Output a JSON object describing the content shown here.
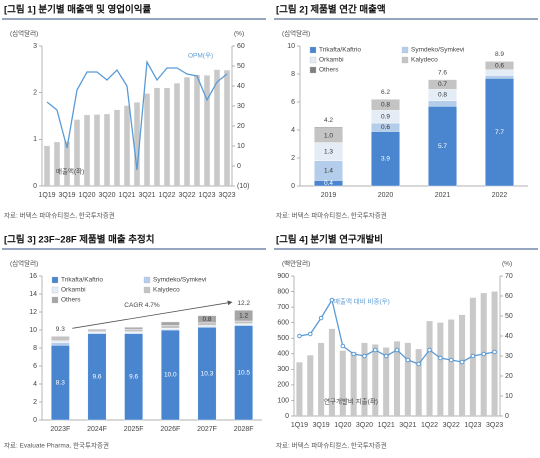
{
  "chart_data": [
    {
      "type": "bar_line",
      "title": "[그림 1] 분기별 매출액 및 영업이익률",
      "source": "자료: 버텍스 파마슈티컬스, 한국투자증권",
      "y_label": "(십억달러)",
      "y2_label": "(%)",
      "categories": [
        "1Q19",
        null,
        "3Q19",
        null,
        "1Q20",
        null,
        "3Q20",
        null,
        "1Q21",
        null,
        "3Q21",
        null,
        "1Q22",
        null,
        "3Q22",
        null,
        "1Q23",
        null,
        "3Q23"
      ],
      "series": [
        {
          "name": "매출액(좌)",
          "color": "#c9c9c9",
          "values": [
            0.86,
            0.94,
            0.95,
            1.42,
            1.52,
            1.53,
            1.54,
            1.63,
            1.72,
            1.79,
            1.98,
            2.1,
            2.1,
            2.2,
            2.33,
            2.38,
            2.37,
            2.49,
            2.48
          ]
        },
        {
          "name": "OPM(우)",
          "color": "#5b9bd5",
          "axis": "y2",
          "values": [
            32,
            28,
            9,
            38,
            47,
            47,
            43,
            48,
            40,
            -2,
            52,
            43,
            49,
            49,
            46,
            45,
            33,
            42,
            46
          ]
        }
      ],
      "ylim": [
        0,
        3
      ],
      "yticks": [
        0,
        1,
        2,
        3
      ],
      "y2lim": [
        -10,
        60
      ],
      "y2ticks": [
        {
          "value": -10,
          "label": "(10)"
        },
        0,
        10,
        20,
        30,
        40,
        50,
        60
      ],
      "markers": false
    },
    {
      "type": "stacked_bar",
      "title": "[그림 2] 제품별 연간 매출액",
      "source": "자료: 버텍스 파마슈티컬스, 한국투자증권",
      "y_label": "(십억달러)",
      "categories": [
        "2019",
        "2020",
        "2021",
        "2022"
      ],
      "series": [
        {
          "name": "Trikafta/Kaftrio",
          "color": "#4a86d0",
          "values": [
            0.4,
            3.9,
            5.7,
            7.7
          ],
          "value_labels": [
            "0.4",
            "3.9",
            "5.7",
            "7.7"
          ]
        },
        {
          "name": "Symdeko/Symkevi",
          "color": "#b4cdea",
          "values": [
            1.4,
            0.6,
            0.4,
            0.2
          ],
          "value_labels": [
            "1.4",
            "0.6",
            null,
            null
          ]
        },
        {
          "name": "Orkambi",
          "color": "#e4ecf6",
          "values": [
            1.3,
            0.9,
            0.8,
            0.4
          ],
          "value_labels": [
            "1.3",
            "0.9",
            "0.8",
            null
          ]
        },
        {
          "name": "Kalydeco",
          "color": "#c4c4c4",
          "values": [
            1.0,
            0.8,
            0.7,
            0.6
          ],
          "value_labels": [
            "1.0",
            "0.8",
            "0.7",
            "0.6"
          ]
        },
        {
          "name": "Others",
          "color": "#7f7f7f",
          "values": [
            0.1,
            0,
            0,
            0
          ],
          "value_labels": [
            null,
            null,
            null,
            null
          ]
        }
      ],
      "totals": [
        4.2,
        6.2,
        7.6,
        8.9
      ],
      "ylim": [
        0,
        10
      ],
      "yticks": [
        0,
        2,
        4,
        6,
        8,
        10
      ],
      "legend": true
    },
    {
      "type": "stacked_bar",
      "title": "[그림 3] 23F~28F 제품별 매출 추정치",
      "source": "자료: Evaluate Pharma, 한국투자증권",
      "y_label": "(십억달러)",
      "annotation": "CAGR 4.7%",
      "categories": [
        "2023F",
        "2024F",
        "2025F",
        "2026F",
        "2027F",
        "2028F"
      ],
      "series": [
        {
          "name": "Trikafta/Kaftrio",
          "color": "#4a86d0",
          "values": [
            8.3,
            9.6,
            9.6,
            10.0,
            10.3,
            10.5
          ],
          "value_labels": [
            "8.3",
            "9.6",
            "9.6",
            "10.0",
            "10.3",
            "10.5"
          ]
        },
        {
          "name": "Symdeko/Symkevi",
          "color": "#b4cdea",
          "values": [
            0.3,
            0.1,
            0.1,
            0.1,
            0.1,
            0.1
          ],
          "value_labels": [
            null,
            null,
            null,
            null,
            null,
            null
          ]
        },
        {
          "name": "Orkambi",
          "color": "#e4ecf6",
          "values": [
            0.2,
            0.1,
            0.1,
            0.1,
            0.1,
            0.1
          ],
          "value_labels": [
            null,
            null,
            null,
            null,
            null,
            null
          ]
        },
        {
          "name": "Kalydeco",
          "color": "#c4c4c4",
          "values": [
            0.5,
            0.3,
            0.3,
            0.3,
            0.3,
            0.3
          ],
          "value_labels": [
            null,
            null,
            null,
            null,
            null,
            null
          ]
        },
        {
          "name": "Others",
          "color": "#a6a6a6",
          "values": [
            0,
            0,
            0.2,
            0.4,
            0.8,
            1.2
          ],
          "value_labels": [
            null,
            null,
            null,
            null,
            "0.8",
            "1.2"
          ]
        }
      ],
      "totals": [
        9.3,
        null,
        null,
        null,
        null,
        12.2
      ],
      "ylim": [
        0,
        16
      ],
      "yticks": [
        0,
        2,
        4,
        6,
        8,
        10,
        12,
        14,
        16
      ],
      "legend": true
    },
    {
      "type": "bar_line",
      "title": "[그림 4] 분기별 연구개발비",
      "source": "자료: 버텍스 파마슈티컬스, 한국투자증권",
      "y_label": "(백만달러)",
      "y2_label": "(%)",
      "categories": [
        "1Q19",
        null,
        "3Q19",
        null,
        "1Q20",
        null,
        "3Q20",
        null,
        "1Q21",
        null,
        "3Q21",
        null,
        "1Q22",
        null,
        "3Q22",
        null,
        "1Q23",
        null,
        "3Q23"
      ],
      "series": [
        {
          "name": "연구개발비 지출(좌)",
          "color": "#c9c9c9",
          "values": [
            345,
            390,
            470,
            560,
            420,
            410,
            470,
            460,
            440,
            480,
            470,
            430,
            610,
            600,
            620,
            650,
            760,
            790,
            800
          ]
        },
        {
          "name": "매출액 대비 비중(우)",
          "color": "#5b9bd5",
          "axis": "y2",
          "values": [
            40,
            41,
            49,
            58,
            35,
            31,
            30,
            33,
            30,
            33,
            28,
            26,
            33,
            29,
            28,
            27,
            30,
            31,
            32
          ]
        }
      ],
      "ylim": [
        0,
        900
      ],
      "yticks": [
        0,
        100,
        200,
        300,
        400,
        500,
        600,
        700,
        800,
        900
      ],
      "y2lim": [
        0,
        70
      ],
      "y2ticks": [
        0,
        10,
        20,
        30,
        40,
        50,
        60,
        70
      ],
      "markers": true
    }
  ]
}
